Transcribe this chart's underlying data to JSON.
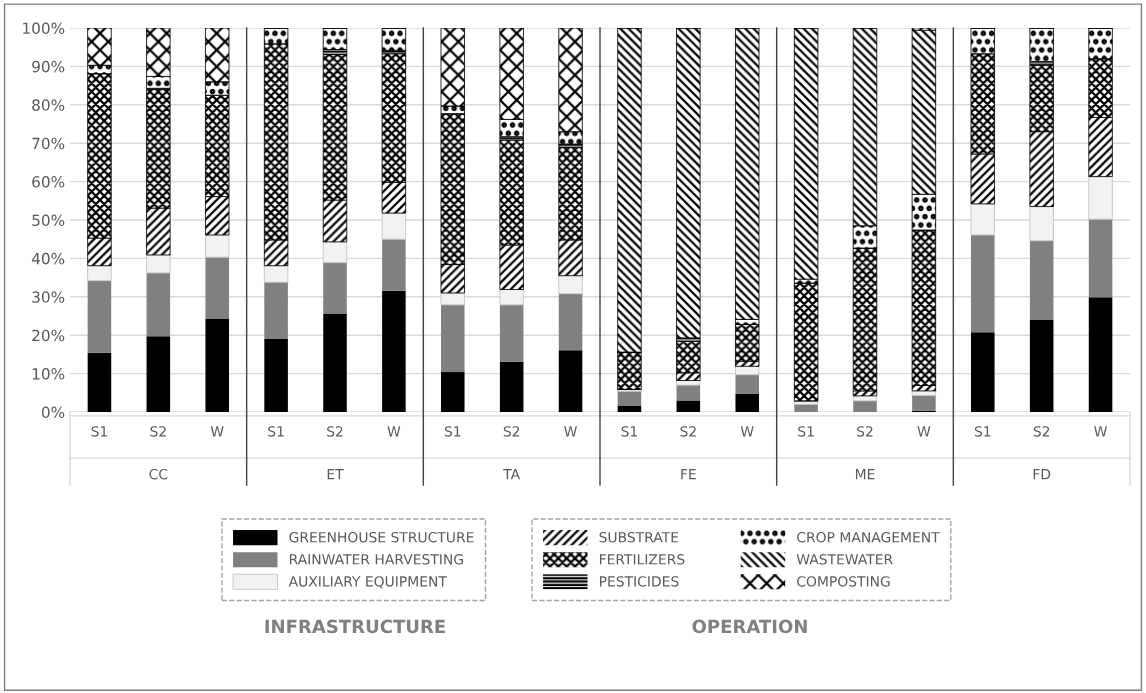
{
  "chart_data": {
    "type": "bar",
    "stacked": true,
    "categories": [
      "S1",
      "S2",
      "W",
      "S1",
      "S2",
      "W",
      "S1",
      "S2",
      "W",
      "S1",
      "S2",
      "W",
      "S1",
      "S2",
      "W",
      "S1",
      "S2",
      "W"
    ],
    "series": [
      {
        "name": "GREENHOUSE STRUCTURE",
        "color": "#000000",
        "values": [
          15.4,
          19.7,
          24.2,
          19.0,
          25.5,
          31.6,
          10.4,
          13.1,
          16.1,
          1.7,
          3.0,
          4.8,
          0,
          0,
          0.3,
          20.8,
          24.1,
          29.9
        ]
      },
      {
        "name": "RAINWATER HARVESTING",
        "color": "#808080",
        "values": [
          18.8,
          16.5,
          16.1,
          14.8,
          13.4,
          13.4,
          17.5,
          14.8,
          14.7,
          3.7,
          4.0,
          4.9,
          2.0,
          2.9,
          4.0,
          25.3,
          20.5,
          20.3
        ]
      },
      {
        "name": "AUXILIARY EQUIPMENT",
        "color": "#f2f2f2",
        "values": [
          3.9,
          4.7,
          5.8,
          4.3,
          5.4,
          6.8,
          3.1,
          4.0,
          4.7,
          0.5,
          1.2,
          2.2,
          0.9,
          1.3,
          1.2,
          8.1,
          8.9,
          11.1
        ]
      },
      {
        "name": "SUBSTRATE",
        "color": "#000000",
        "values": [
          7.2,
          12.2,
          10.0,
          6.7,
          10.9,
          8.0,
          7.4,
          11.6,
          9.3,
          0,
          2.0,
          1.3,
          0,
          1.3,
          1.4,
          13.0,
          19.5,
          15.4
        ]
      },
      {
        "name": "FERTILIZERS",
        "color": "#000000",
        "values": [
          42.8,
          30.9,
          26.4,
          51.1,
          37.9,
          33.5,
          39.3,
          27.3,
          24.1,
          9.7,
          8.2,
          9.6,
          30.7,
          37.2,
          40.5,
          26.1,
          17.3,
          15.3
        ]
      },
      {
        "name": "PESTICIDES",
        "color": "#000000",
        "values": [
          0,
          0.3,
          0,
          0,
          1.3,
          0.9,
          0,
          0.9,
          0.9,
          0,
          0.9,
          0,
          0,
          0,
          0,
          0,
          1.0,
          0
        ]
      },
      {
        "name": "CROP MANAGEMENT",
        "color": "#000000",
        "values": [
          2.2,
          3.1,
          3.5,
          4.1,
          5.6,
          5.8,
          2.0,
          4.5,
          3.2,
          0,
          0,
          1.3,
          1.0,
          5.8,
          9.3,
          6.7,
          8.7,
          8.0
        ]
      },
      {
        "name": "WASTEWATER",
        "color": "#000000",
        "values": [
          0,
          0,
          0,
          0,
          0,
          0,
          0,
          0,
          0,
          84.4,
          80.7,
          75.9,
          65.4,
          51.5,
          42.7,
          0,
          0,
          0
        ]
      },
      {
        "name": "COMPOSTING",
        "color": "#000000",
        "values": [
          9.7,
          12.6,
          14.0,
          0,
          0,
          0,
          20.3,
          23.8,
          27.0,
          0,
          0,
          0,
          0,
          0,
          0.6,
          0,
          0,
          0
        ]
      }
    ],
    "ylim": [
      0,
      100
    ],
    "yticks": [
      {
        "value": 0,
        "label": "0%"
      },
      {
        "value": 10,
        "label": "10%"
      },
      {
        "value": 20,
        "label": "20%"
      },
      {
        "value": 30,
        "label": "30%"
      },
      {
        "value": 40,
        "label": "40%"
      },
      {
        "value": 50,
        "label": "50%"
      },
      {
        "value": 60,
        "label": "60%"
      },
      {
        "value": 70,
        "label": "70%"
      },
      {
        "value": 80,
        "label": "80%"
      },
      {
        "value": 90,
        "label": "90%"
      },
      {
        "value": 100,
        "label": "100%"
      }
    ],
    "grid": "y",
    "legend": "bottom",
    "annotations": [
      "CC",
      "ET",
      "TA",
      "FE",
      "ME",
      "FD",
      "INFRASTRUCTURE",
      "OPERATION"
    ]
  }
}
